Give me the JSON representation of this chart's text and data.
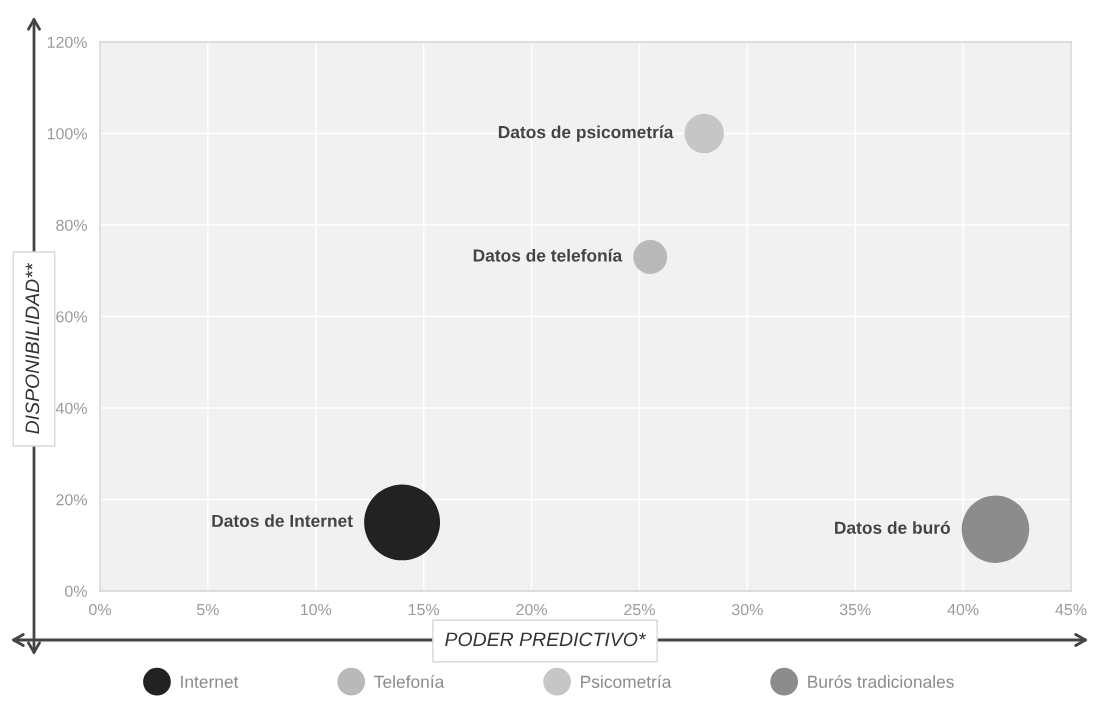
{
  "chart_data": {
    "type": "bubble",
    "xlabel": "PODER PREDICTIVO*",
    "ylabel": "DISPONIBILIDAD**",
    "xlim": [
      0,
      45
    ],
    "xticks": [
      {
        "value": 0,
        "label": "0%"
      },
      {
        "value": 5,
        "label": "5%"
      },
      {
        "value": 10,
        "label": "10%"
      },
      {
        "value": 15,
        "label": "15%"
      },
      {
        "value": 20,
        "label": "20%"
      },
      {
        "value": 25,
        "label": "25%"
      },
      {
        "value": 30,
        "label": "30%"
      },
      {
        "value": 35,
        "label": "35%"
      },
      {
        "value": 40,
        "label": "40%"
      },
      {
        "value": 45,
        "label": "45%"
      }
    ],
    "ylim": [
      0,
      120
    ],
    "yticks": [
      {
        "value": 0,
        "label": "0%"
      },
      {
        "value": 20,
        "label": "20%"
      },
      {
        "value": 40,
        "label": "40%"
      },
      {
        "value": 60,
        "label": "60%"
      },
      {
        "value": 80,
        "label": "80%"
      },
      {
        "value": 100,
        "label": "100%"
      },
      {
        "value": 120,
        "label": "120%"
      }
    ],
    "grid": true,
    "legend": "bottom",
    "marker": "circle",
    "series": [
      {
        "name": "Internet",
        "color": "#222222",
        "x": [
          14
        ],
        "values": [
          15
        ],
        "sizes": [
          1
        ]
      },
      {
        "name": "Telefonía",
        "color": "#b9b9b9",
        "x": [
          25.5
        ],
        "values": [
          73
        ],
        "sizes": [
          0.2
        ]
      },
      {
        "name": "Psicometría",
        "color": "#c6c6c6",
        "x": [
          28
        ],
        "values": [
          100
        ],
        "sizes": [
          0.27
        ]
      },
      {
        "name": "Burós tradicionales",
        "color": "#8c8c8c",
        "x": [
          41.5
        ],
        "values": [
          13.5
        ],
        "sizes": [
          0.79
        ]
      }
    ],
    "annotations": [
      {
        "text": "Datos de Internet",
        "x": 14,
        "y": 15
      },
      {
        "text": "Datos de telefonía",
        "x": 25.5,
        "y": 73
      },
      {
        "text": "Datos de psicometría",
        "x": 28,
        "y": 100
      },
      {
        "text": "Datos de buró",
        "x": 41.5,
        "y": 13.5
      }
    ]
  }
}
